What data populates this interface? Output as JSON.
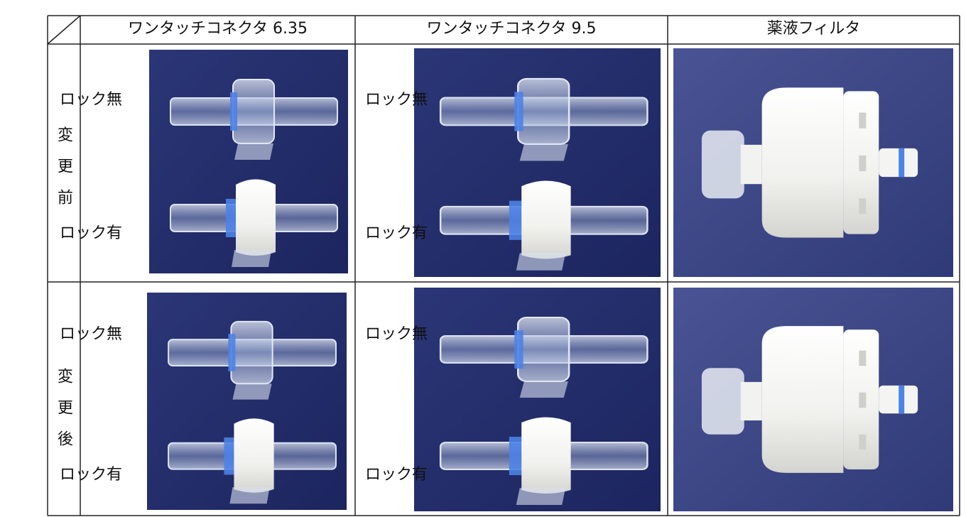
{
  "table": {
    "header": [
      "ワンタッチコネクタ 6.35",
      "ワンタッチコネクタ 9.5",
      "薬液フィルタ"
    ],
    "rows": [
      {
        "label": "変更前",
        "cells": [
          {
            "labels": [
              "ロック無",
              "ロック有"
            ]
          },
          {
            "labels": [
              "ロック無",
              "ロック有"
            ]
          }
        ]
      },
      {
        "label": "変更後",
        "cells": [
          {
            "labels": [
              "ロック無",
              "ロック有"
            ]
          },
          {
            "labels": [
              "ロック無",
              "ロック有"
            ]
          }
        ]
      }
    ]
  }
}
